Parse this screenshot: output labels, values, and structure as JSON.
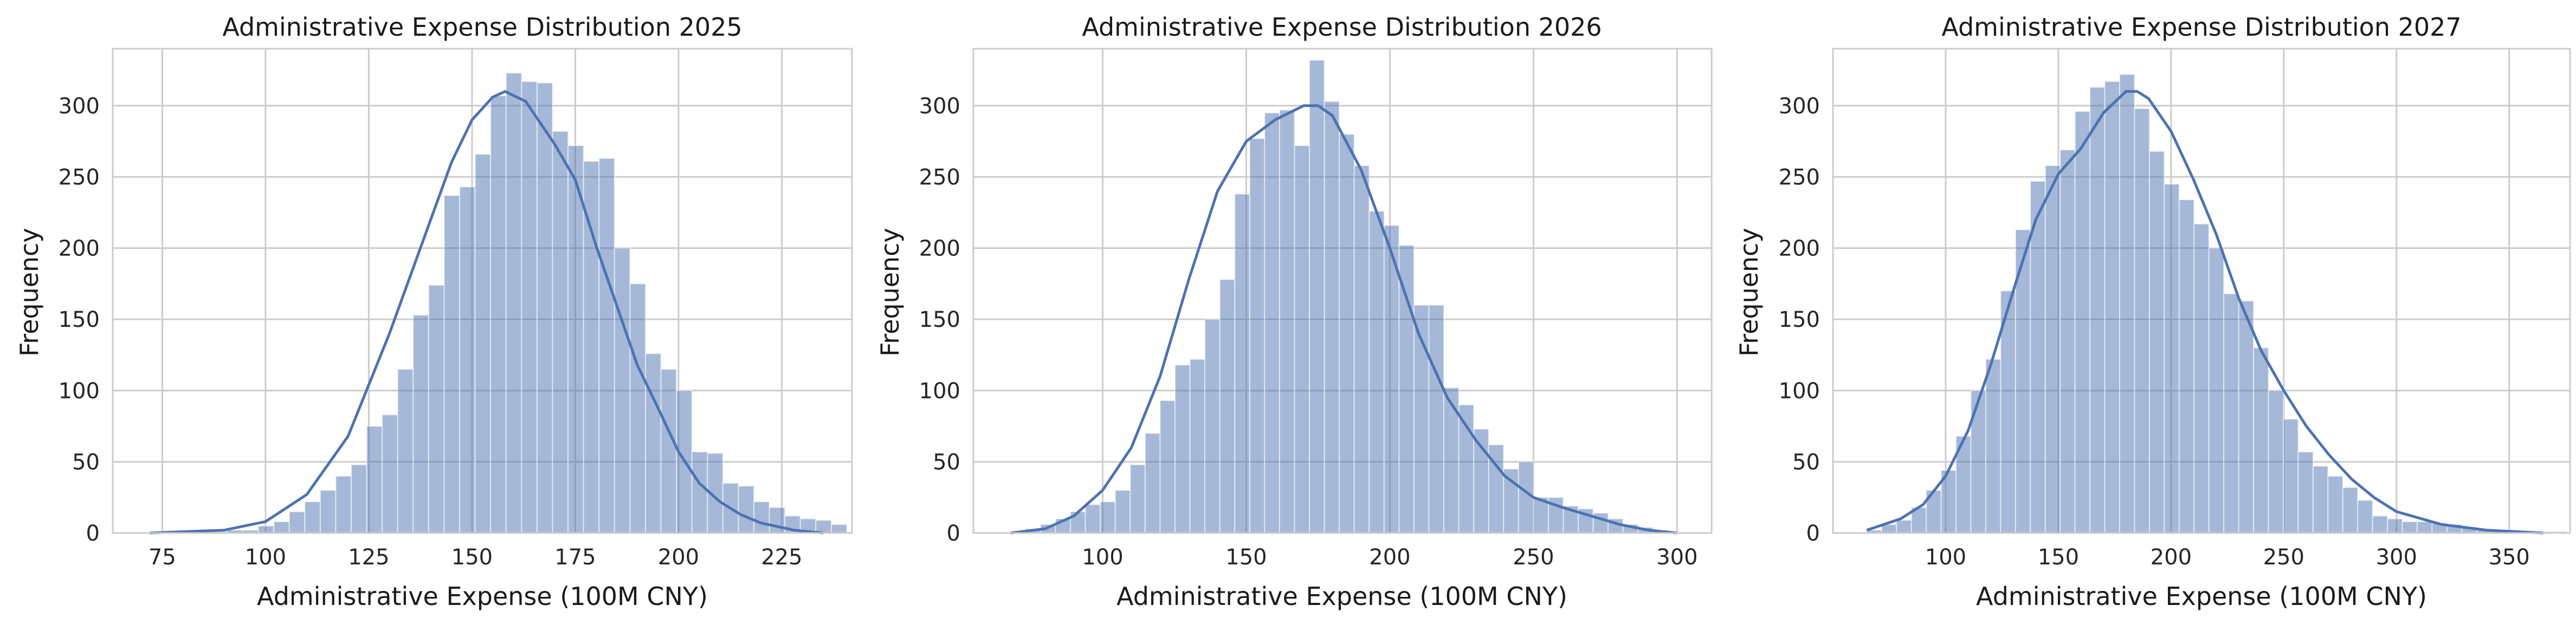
{
  "colors": {
    "bar": "#4c72b0",
    "line": "#4c72b0",
    "grid": "#cccccc"
  },
  "chart_data": [
    {
      "type": "bar",
      "title": "Administrative Expense Distribution 2025",
      "xlabel": "Administrative Expense (100M CNY)",
      "ylabel": "Frequency",
      "xlim": [
        63,
        242
      ],
      "ylim": [
        0,
        340
      ],
      "xticks": [
        75,
        100,
        125,
        150,
        175,
        200,
        225
      ],
      "yticks": [
        0,
        50,
        100,
        150,
        200,
        250,
        300
      ],
      "bin_start": 72,
      "bin_width": 3.75,
      "counts": [
        1,
        0,
        1,
        0,
        1,
        2,
        2,
        5,
        8,
        15,
        22,
        30,
        40,
        48,
        75,
        83,
        115,
        153,
        174,
        237,
        243,
        266,
        307,
        323,
        317,
        316,
        282,
        272,
        261,
        263,
        200,
        175,
        126,
        115,
        100,
        57,
        56,
        35,
        33,
        22,
        18,
        12,
        10,
        9,
        6
      ],
      "kde_x": [
        72,
        90,
        100,
        110,
        120,
        130,
        140,
        145,
        150,
        155,
        158,
        163,
        170,
        175,
        180,
        185,
        190,
        195,
        200,
        205,
        210,
        215,
        220,
        228,
        235
      ],
      "kde_y": [
        0,
        2,
        8,
        27,
        68,
        140,
        220,
        260,
        290,
        306,
        310,
        303,
        273,
        248,
        202,
        160,
        118,
        88,
        57,
        35,
        22,
        13,
        7,
        2,
        0
      ]
    },
    {
      "type": "bar",
      "title": "Administrative Expense Distribution 2026",
      "xlabel": "Administrative Expense (100M CNY)",
      "ylabel": "Frequency",
      "xlim": [
        55,
        312
      ],
      "ylim": [
        0,
        340
      ],
      "xticks": [
        100,
        150,
        200,
        250,
        300
      ],
      "yticks": [
        0,
        50,
        100,
        150,
        200,
        250,
        300
      ],
      "bin_start": 68,
      "bin_width": 5.2,
      "counts": [
        1,
        3,
        6,
        10,
        15,
        20,
        22,
        30,
        48,
        70,
        93,
        118,
        122,
        150,
        178,
        238,
        277,
        295,
        297,
        272,
        332,
        303,
        280,
        258,
        226,
        216,
        202,
        160,
        160,
        102,
        90,
        73,
        62,
        45,
        50,
        25,
        25,
        19,
        17,
        14,
        10,
        6,
        4,
        2
      ],
      "kde_x": [
        68,
        80,
        90,
        100,
        110,
        120,
        130,
        140,
        150,
        160,
        170,
        175,
        180,
        190,
        200,
        210,
        220,
        230,
        240,
        250,
        260,
        270,
        280,
        290,
        300
      ],
      "kde_y": [
        0,
        3,
        12,
        30,
        60,
        110,
        178,
        240,
        275,
        290,
        300,
        300,
        293,
        255,
        200,
        140,
        95,
        65,
        40,
        25,
        18,
        12,
        6,
        2,
        0
      ]
    },
    {
      "type": "bar",
      "title": "Administrative Expense Distribution 2027",
      "xlabel": "Administrative Expense (100M CNY)",
      "ylabel": "Frequency",
      "xlim": [
        50,
        377
      ],
      "ylim": [
        0,
        340
      ],
      "xticks": [
        100,
        150,
        200,
        250,
        300,
        350
      ],
      "yticks": [
        0,
        50,
        100,
        150,
        200,
        250,
        300
      ],
      "bin_start": 65,
      "bin_width": 6.6,
      "counts": [
        2,
        6,
        9,
        18,
        30,
        44,
        68,
        100,
        122,
        170,
        213,
        247,
        258,
        269,
        296,
        313,
        317,
        322,
        298,
        268,
        245,
        234,
        217,
        200,
        168,
        163,
        130,
        100,
        80,
        57,
        47,
        40,
        32,
        23,
        12,
        10,
        8,
        8,
        7,
        6,
        4,
        3,
        2,
        2,
        1,
        1,
        1
      ],
      "kde_x": [
        65,
        80,
        90,
        100,
        110,
        120,
        130,
        140,
        150,
        160,
        170,
        180,
        185,
        190,
        200,
        210,
        220,
        230,
        240,
        250,
        260,
        270,
        280,
        290,
        300,
        320,
        340,
        365
      ],
      "kde_y": [
        2,
        10,
        20,
        40,
        72,
        118,
        170,
        220,
        252,
        270,
        295,
        310,
        310,
        305,
        282,
        248,
        210,
        165,
        128,
        100,
        75,
        55,
        38,
        25,
        15,
        6,
        2,
        0
      ]
    }
  ]
}
